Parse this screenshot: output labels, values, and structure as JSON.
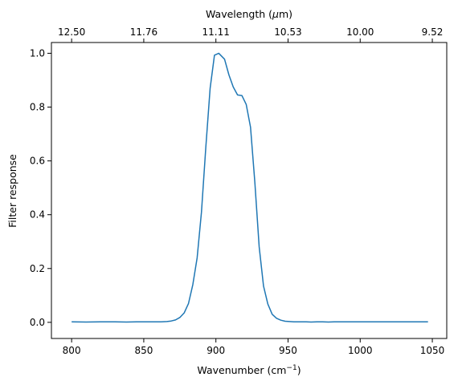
{
  "chart_data": {
    "type": "line",
    "xlabel_prefix": "Wavenumber (cm",
    "xlabel_sup": "−1",
    "xlabel_suffix": ")",
    "top_xlabel_prefix": "Wavelength (",
    "top_xlabel_mu": "μ",
    "top_xlabel_suffix": "m)",
    "ylabel": "Filter response",
    "xlim": [
      786,
      1060
    ],
    "ylim": [
      -0.06,
      1.04
    ],
    "x_ticks": [
      800,
      850,
      900,
      950,
      1000,
      1050
    ],
    "x_tick_labels": [
      "800",
      "850",
      "900",
      "950",
      "1000",
      "1050"
    ],
    "y_ticks": [
      0.0,
      0.2,
      0.4,
      0.6,
      0.8,
      1.0
    ],
    "y_tick_labels": [
      "0.0",
      "0.2",
      "0.4",
      "0.6",
      "0.8",
      "1.0"
    ],
    "top_ticks": [
      800,
      850,
      900,
      950,
      1000,
      1050
    ],
    "top_tick_labels": [
      "12.50",
      "11.76",
      "11.11",
      "10.53",
      "10.00",
      "9.52"
    ],
    "grid": false,
    "series": [
      {
        "color": "#1f77b4",
        "x": [
          800,
          810,
          820,
          830,
          838,
          845,
          855,
          862,
          866,
          869,
          872,
          875,
          878,
          881,
          884,
          887,
          890,
          893,
          896,
          899,
          902,
          906,
          909,
          912,
          915,
          918,
          921,
          924,
          927,
          930,
          933,
          936,
          939,
          942,
          945,
          948,
          951,
          954,
          958,
          962,
          966,
          970,
          974,
          978,
          982,
          990,
          1000,
          1010,
          1020,
          1030,
          1040,
          1047
        ],
        "y": [
          0.002,
          0.001,
          0.002,
          0.002,
          0.001,
          0.002,
          0.002,
          0.002,
          0.003,
          0.005,
          0.009,
          0.018,
          0.035,
          0.07,
          0.14,
          0.24,
          0.41,
          0.65,
          0.87,
          0.993,
          1.0,
          0.978,
          0.92,
          0.875,
          0.845,
          0.843,
          0.81,
          0.725,
          0.52,
          0.28,
          0.135,
          0.068,
          0.03,
          0.015,
          0.008,
          0.004,
          0.003,
          0.002,
          0.002,
          0.002,
          0.001,
          0.002,
          0.002,
          0.001,
          0.002,
          0.002,
          0.002,
          0.002,
          0.002,
          0.002,
          0.002,
          0.002
        ]
      }
    ]
  }
}
